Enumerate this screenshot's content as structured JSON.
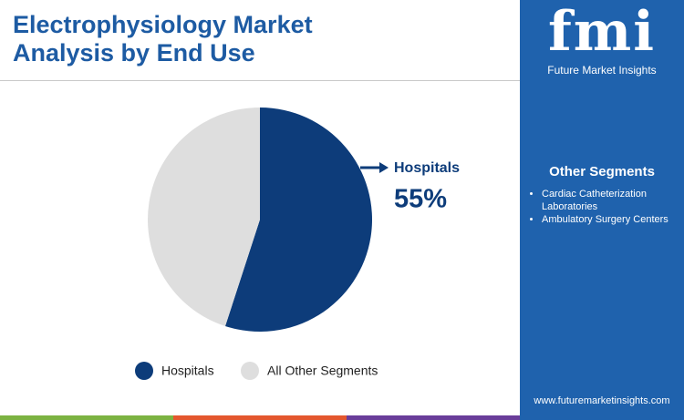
{
  "chart_data": {
    "type": "pie",
    "title": "Electrophysiology Market Analysis by End Use",
    "categories": [
      "Hospitals",
      "All Other Segments"
    ],
    "values": [
      55,
      45
    ],
    "value_labels": [
      "55%",
      null
    ],
    "colors": [
      "#0d3c7a",
      "#dedede"
    ]
  },
  "sidebar": {
    "heading": "Other Segments",
    "items": [
      "Cardiac Catheterization Laboratories",
      "Ambulatory Surgery Centers"
    ]
  },
  "brand": {
    "logo": "fmi",
    "name": "Future Market Insights",
    "website": "www.futuremarketinsights.com"
  }
}
